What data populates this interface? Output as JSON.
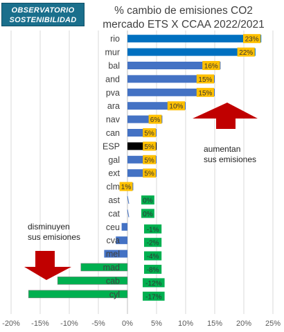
{
  "logo": {
    "line1": "OBSERVATORIO",
    "line2": "SOSTENIBILIDAD"
  },
  "chart_data": {
    "type": "bar",
    "orientation": "horizontal",
    "title_line1": "% cambio de emisiones CO2",
    "title_line2": "mercado ETS X CCAA 2022/2021",
    "categories": [
      "rio",
      "mur",
      "bal",
      "and",
      "pva",
      "ara",
      "nav",
      "can",
      "ESP",
      "gal",
      "ext",
      "clm",
      "ast",
      "cat",
      "ceu",
      "cva",
      "mel",
      "mad",
      "cab",
      "cyl"
    ],
    "values": [
      23,
      22,
      16,
      15,
      15,
      10,
      6,
      5,
      5,
      5,
      5,
      1,
      0,
      0,
      -1,
      -2,
      -4,
      -8,
      -12,
      -17
    ],
    "data_labels": [
      "23%",
      "22%",
      "16%",
      "15%",
      "15%",
      "10%",
      "6%",
      "5%",
      "5%",
      "5%",
      "5%",
      "1%",
      "0%",
      "0%",
      "-1%",
      "-2%",
      "-4%",
      "-8%",
      "-12%",
      "-17%"
    ],
    "xlim": [
      -20,
      25
    ],
    "x_ticks": [
      "-20%",
      "-15%",
      "-10%",
      "-5%",
      "0%",
      "5%",
      "10%",
      "15%",
      "20%",
      "25%"
    ],
    "x_tick_values": [
      -20,
      -15,
      -10,
      -5,
      0,
      5,
      10,
      15,
      20,
      25
    ],
    "grid": "vertical",
    "colors": {
      "positive_bar": "#4472c4",
      "top_bar": "#0070c0",
      "esp_bar": "#000000",
      "negative_bar": "#00b050",
      "positive_label_bg": "#ffc000",
      "negative_label_bg": "#00b050",
      "arrow": "#c00000",
      "grid": "#d9d9d9"
    }
  },
  "annotations": {
    "increase_line1": "aumentan",
    "increase_line2": "sus emisiones",
    "decrease_line1": "disminuyen",
    "decrease_line2": "sus emisiones"
  }
}
